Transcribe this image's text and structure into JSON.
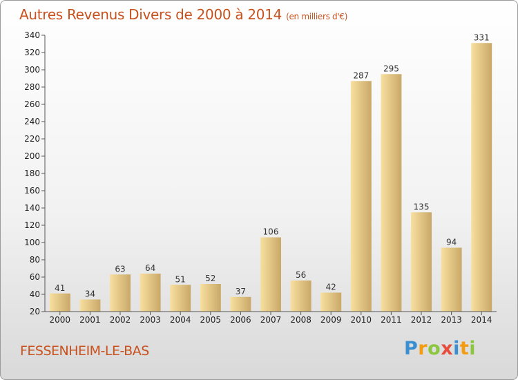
{
  "header": {
    "title": "Autres Revenus Divers de 2000 à 2014",
    "subtitle": "(en milliers d'€)"
  },
  "footer": {
    "place": "FESSENHEIM-LE-BAS",
    "logo_letters": [
      {
        "ch": "P",
        "color": "#3b8fd0"
      },
      {
        "ch": "r",
        "color": "#f39c12"
      },
      {
        "ch": "o",
        "color": "#8cc63f"
      },
      {
        "ch": "x",
        "color": "#e74c3c"
      },
      {
        "ch": "i",
        "color": "#3b8fd0"
      },
      {
        "ch": "t",
        "color": "#f39c12"
      },
      {
        "ch": "i",
        "color": "#8cc63f"
      }
    ]
  },
  "chart_data": {
    "type": "bar",
    "title": "Autres Revenus Divers de 2000 à 2014",
    "subtitle": "(en milliers d'€)",
    "categories": [
      "2000",
      "2001",
      "2002",
      "2003",
      "2004",
      "2005",
      "2006",
      "2007",
      "2008",
      "2009",
      "2010",
      "2011",
      "2012",
      "2013",
      "2014"
    ],
    "values": [
      41,
      34,
      63,
      64,
      51,
      52,
      37,
      106,
      56,
      42,
      287,
      295,
      135,
      94,
      331
    ],
    "ylim": [
      20,
      340
    ],
    "yticks": [
      20,
      40,
      60,
      80,
      100,
      120,
      140,
      160,
      180,
      200,
      220,
      240,
      260,
      280,
      300,
      320,
      340
    ],
    "grid": false,
    "colors": {
      "bar_light": "#f8e0a0",
      "bar_dark": "#c9a868",
      "axis": "#555555"
    }
  }
}
